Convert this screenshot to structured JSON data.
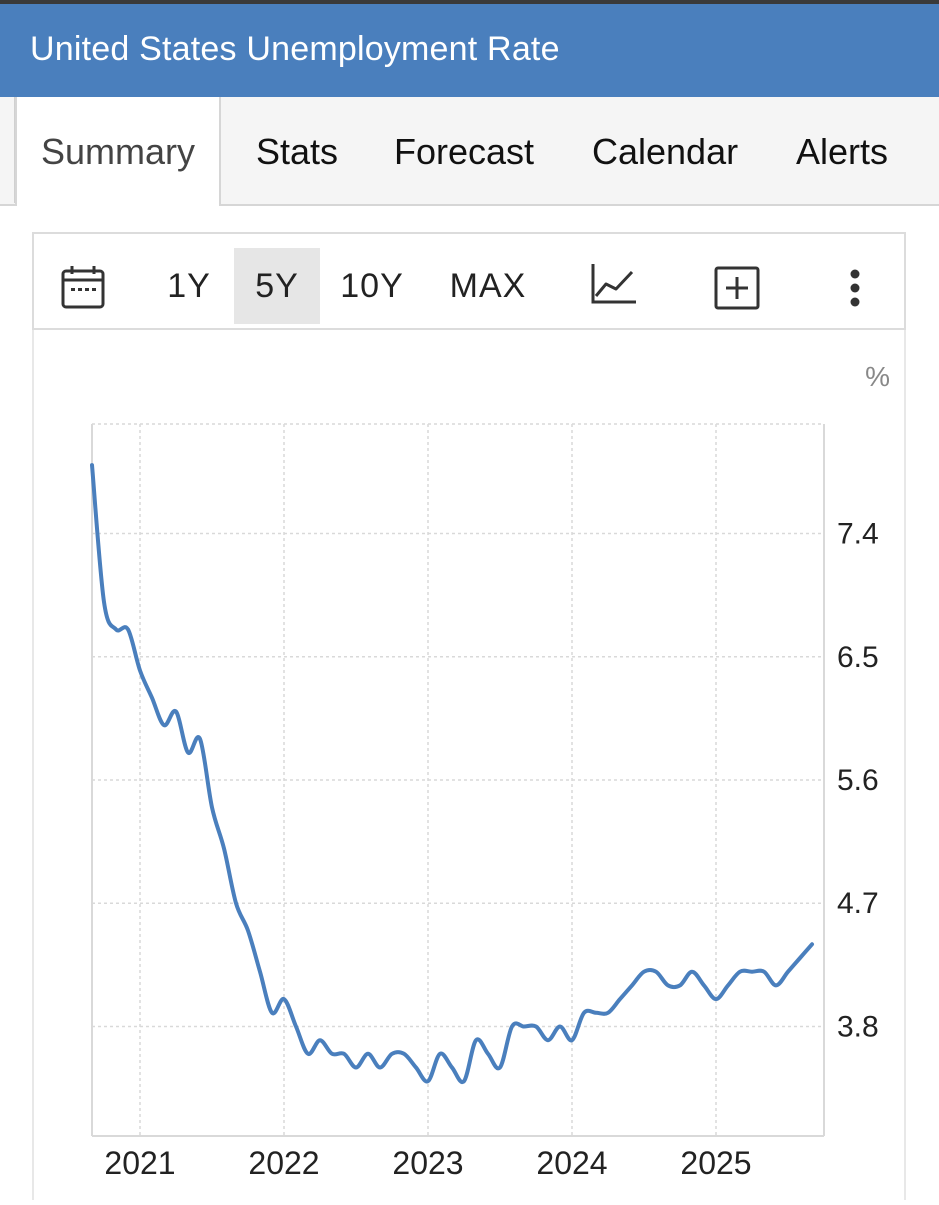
{
  "header": {
    "title": "United States Unemployment Rate"
  },
  "tabs": [
    {
      "label": "Summary",
      "active": true
    },
    {
      "label": "Stats",
      "active": false
    },
    {
      "label": "Forecast",
      "active": false
    },
    {
      "label": "Calendar",
      "active": false
    },
    {
      "label": "Alerts",
      "active": false
    }
  ],
  "toolbar": {
    "calendar_icon": "calendar-icon",
    "ranges": [
      "1Y",
      "5Y",
      "10Y",
      "MAX"
    ],
    "selected_range": "5Y",
    "chart_type_icon": "line-chart-icon",
    "compare_icon": "plus-box-icon",
    "more_icon": "more-vertical-icon"
  },
  "colors": {
    "header_bg": "#4a7fbd",
    "line": "#4a7fbd",
    "grid": "#d9d9d9",
    "selected_range_bg": "#e6e6e6"
  },
  "chart_data": {
    "type": "line",
    "unit_label": "%",
    "ylim": [
      3.0,
      8.2
    ],
    "yticks": [
      3.8,
      4.7,
      5.6,
      6.5,
      7.4
    ],
    "ytick_labels": [
      "3.8",
      "4.7",
      "5.6",
      "6.5",
      "7.4"
    ],
    "x_tick_labels": [
      "2021",
      "2022",
      "2023",
      "2024",
      "2025"
    ],
    "x_tick_values": [
      "2021-01",
      "2022-01",
      "2023-01",
      "2024-01",
      "2025-01"
    ],
    "xlim": [
      "2020-09",
      "2025-10"
    ],
    "grid": true,
    "series": [
      {
        "x": [
          "2020-09",
          "2020-10",
          "2020-11",
          "2020-12",
          "2021-01",
          "2021-02",
          "2021-03",
          "2021-04",
          "2021-05",
          "2021-06",
          "2021-07",
          "2021-08",
          "2021-09",
          "2021-10",
          "2021-11",
          "2021-12",
          "2022-01",
          "2022-02",
          "2022-03",
          "2022-04",
          "2022-05",
          "2022-06",
          "2022-07",
          "2022-08",
          "2022-09",
          "2022-10",
          "2022-11",
          "2022-12",
          "2023-01",
          "2023-02",
          "2023-03",
          "2023-04",
          "2023-05",
          "2023-06",
          "2023-07",
          "2023-08",
          "2023-09",
          "2023-10",
          "2023-11",
          "2023-12",
          "2024-01",
          "2024-02",
          "2024-03",
          "2024-04",
          "2024-05",
          "2024-06",
          "2024-07",
          "2024-08",
          "2024-09",
          "2024-10",
          "2024-11",
          "2024-12",
          "2025-01",
          "2025-02",
          "2025-03",
          "2025-04",
          "2025-05",
          "2025-06",
          "2025-07",
          "2025-08",
          "2025-09"
        ],
        "y": [
          7.9,
          6.9,
          6.7,
          6.7,
          6.4,
          6.2,
          6.0,
          6.1,
          5.8,
          5.9,
          5.4,
          5.1,
          4.7,
          4.5,
          4.2,
          3.9,
          4.0,
          3.8,
          3.6,
          3.7,
          3.6,
          3.6,
          3.5,
          3.6,
          3.5,
          3.6,
          3.6,
          3.5,
          3.4,
          3.6,
          3.5,
          3.4,
          3.7,
          3.6,
          3.5,
          3.8,
          3.8,
          3.8,
          3.7,
          3.8,
          3.7,
          3.9,
          3.9,
          3.9,
          4.0,
          4.1,
          4.2,
          4.2,
          4.1,
          4.1,
          4.2,
          4.1,
          4.0,
          4.1,
          4.2,
          4.2,
          4.2,
          4.1,
          4.2,
          4.3,
          4.4
        ]
      }
    ]
  }
}
